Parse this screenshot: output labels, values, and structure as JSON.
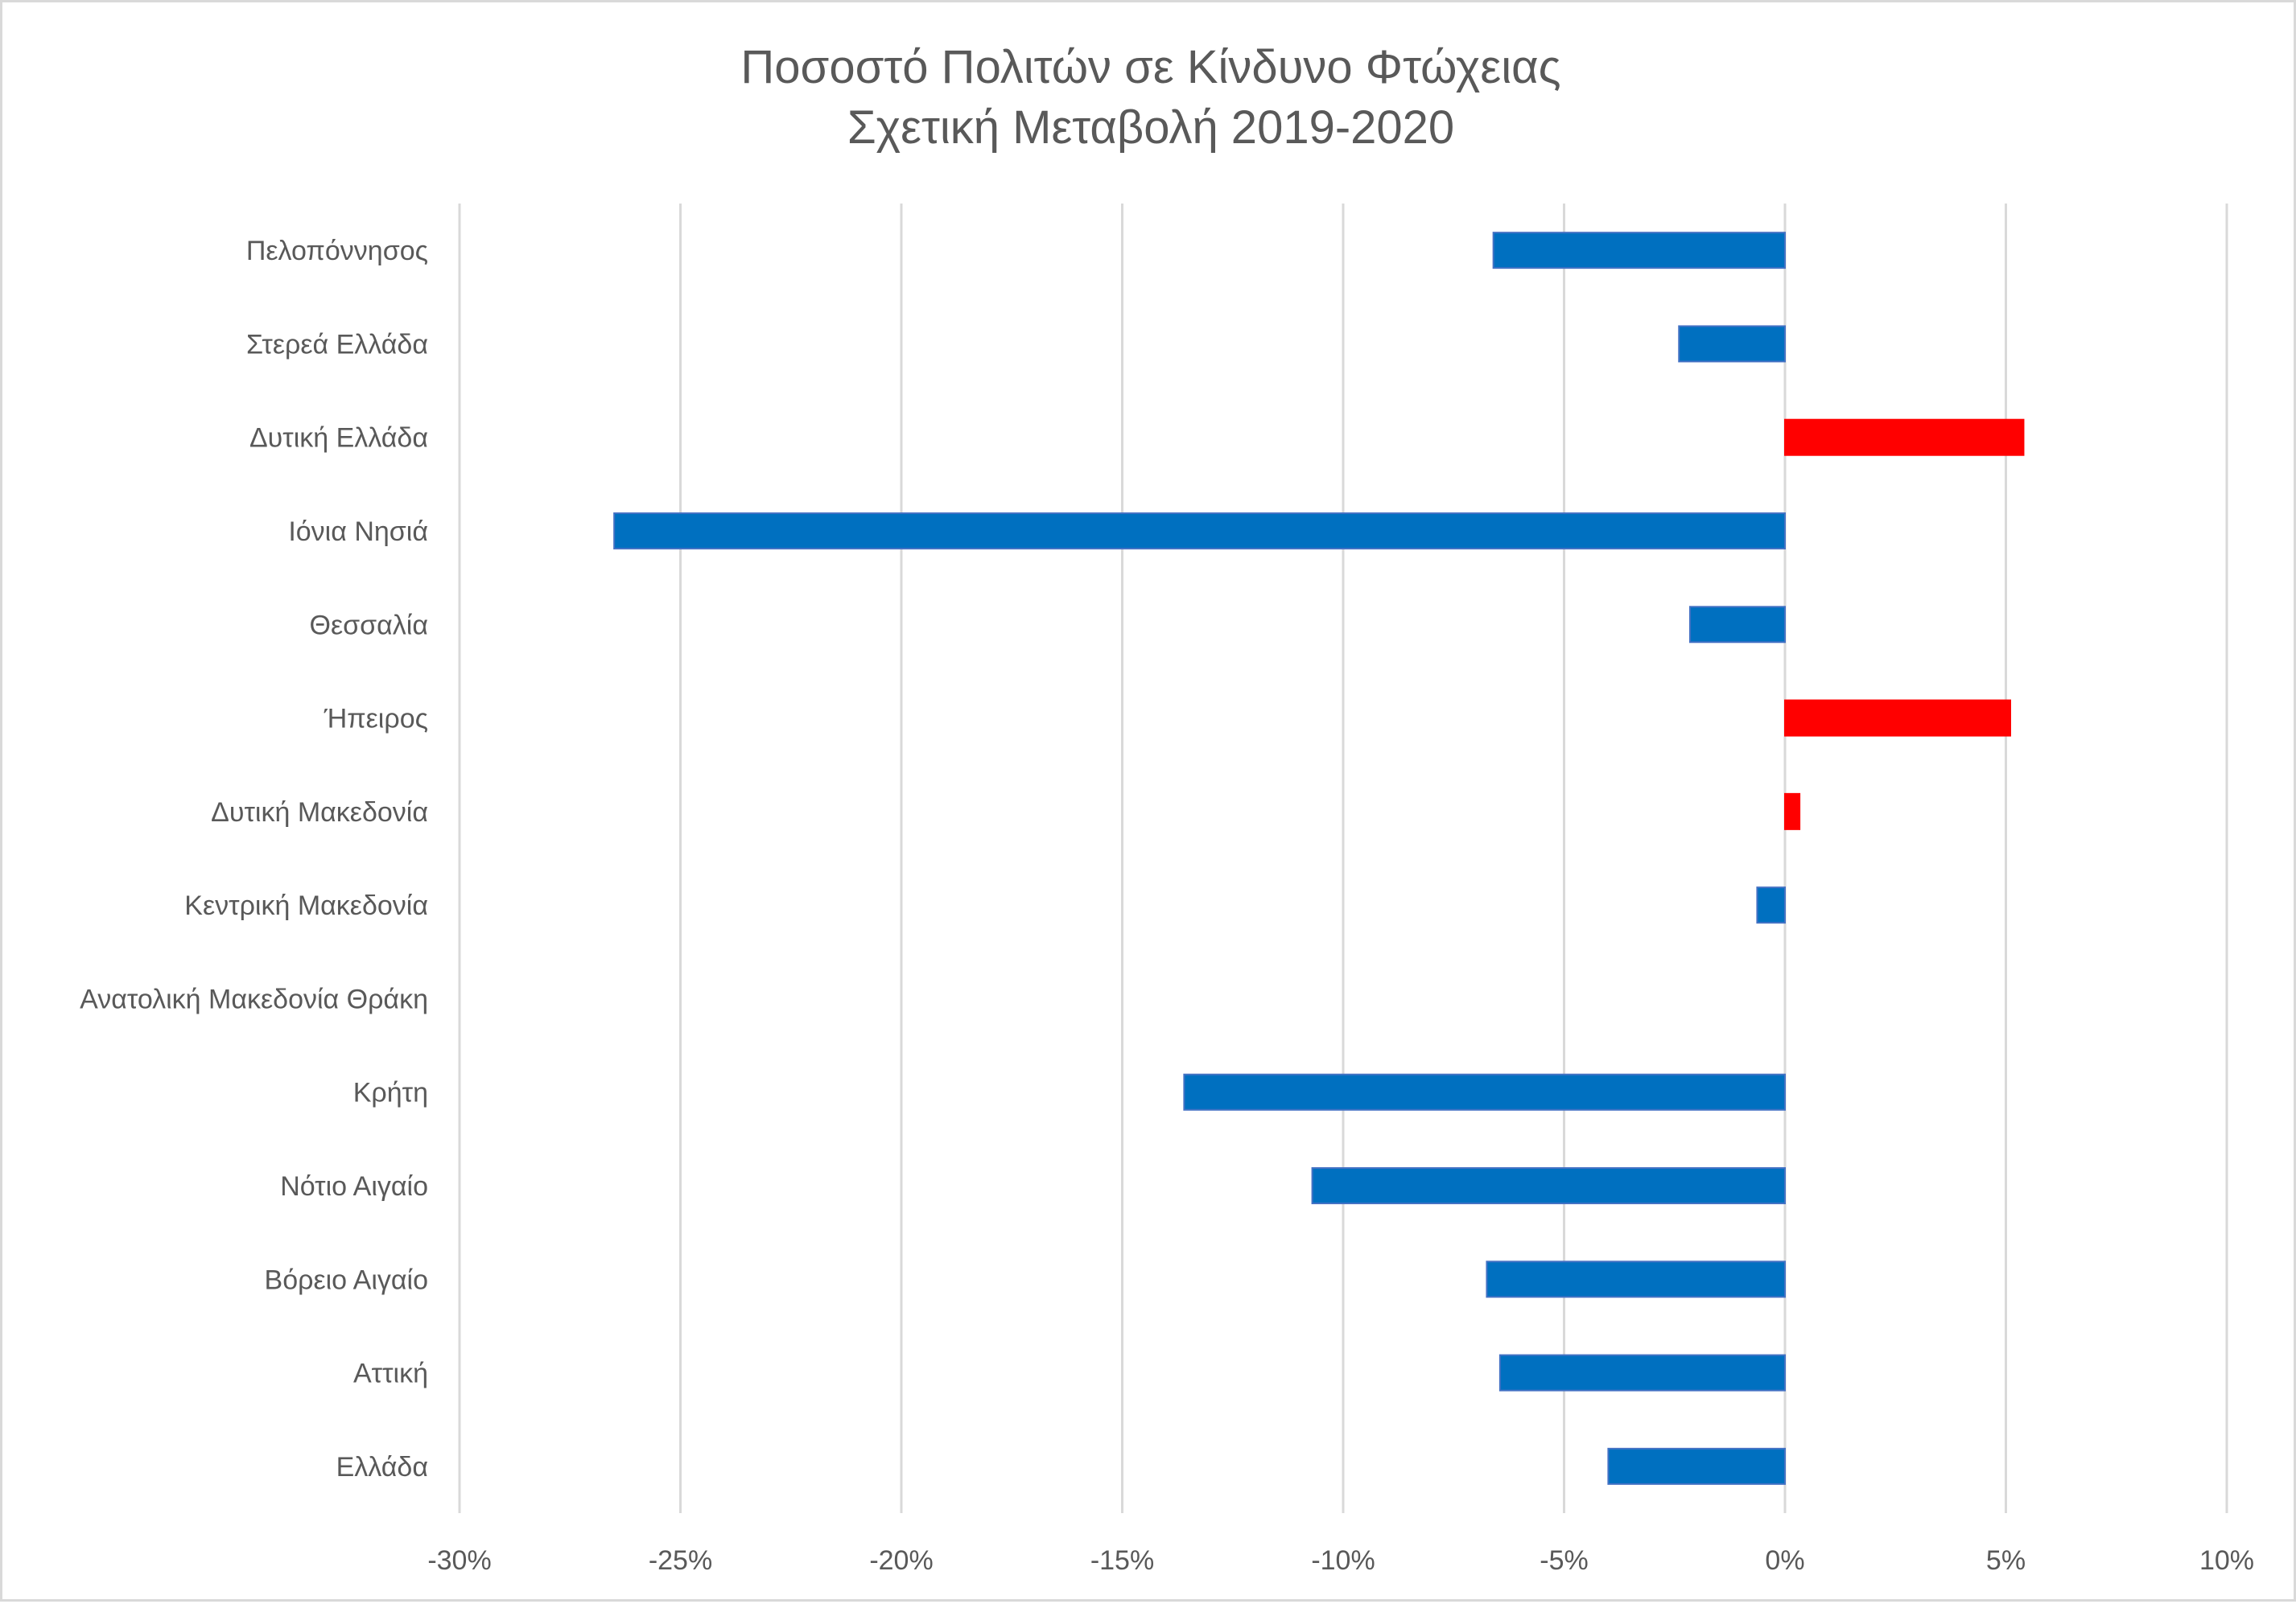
{
  "chart_data": {
    "type": "bar",
    "orientation": "horizontal",
    "title": [
      "Ποσοστό Πολιτών σε Κίνδυνο Φτώχειας",
      "Σχετική Μεταβολή 2019-2020"
    ],
    "xlabel": "",
    "ylabel": "",
    "xlim": [
      -0.3,
      0.1
    ],
    "x_ticks": [
      -0.3,
      -0.25,
      -0.2,
      -0.15,
      -0.1,
      -0.05,
      0,
      0.05,
      0.1
    ],
    "x_tick_labels": [
      "-30%",
      "-25%",
      "-20%",
      "-15%",
      "-10%",
      "-5%",
      "0%",
      "5%",
      "10%"
    ],
    "grid": "vertical",
    "legend": "none",
    "categories": [
      "Πελοπόννησος",
      "Στερεά Ελλάδα",
      "Δυτική Ελλάδα",
      "Ιόνια Νησιά",
      "Θεσσαλία",
      "Ήπειρος",
      "Δυτική Μακεδονία",
      "Κεντρική Μακεδονία",
      "Ανατολική Μακεδονία Θράκη",
      "Κρήτη",
      "Νότιο Αιγαίο",
      "Βόρειο Αιγαίο",
      "Αττική",
      "Ελλάδα"
    ],
    "values": [
      -0.066,
      -0.024,
      0.054,
      -0.265,
      -0.0215,
      0.051,
      0.0033,
      -0.0063,
      0,
      -0.136,
      -0.107,
      -0.0675,
      -0.0645,
      -0.04
    ],
    "colors": {
      "negative": "#0070C0",
      "positive": "#FF0000",
      "grid": "#D9D9D9",
      "text": "#595959"
    }
  }
}
